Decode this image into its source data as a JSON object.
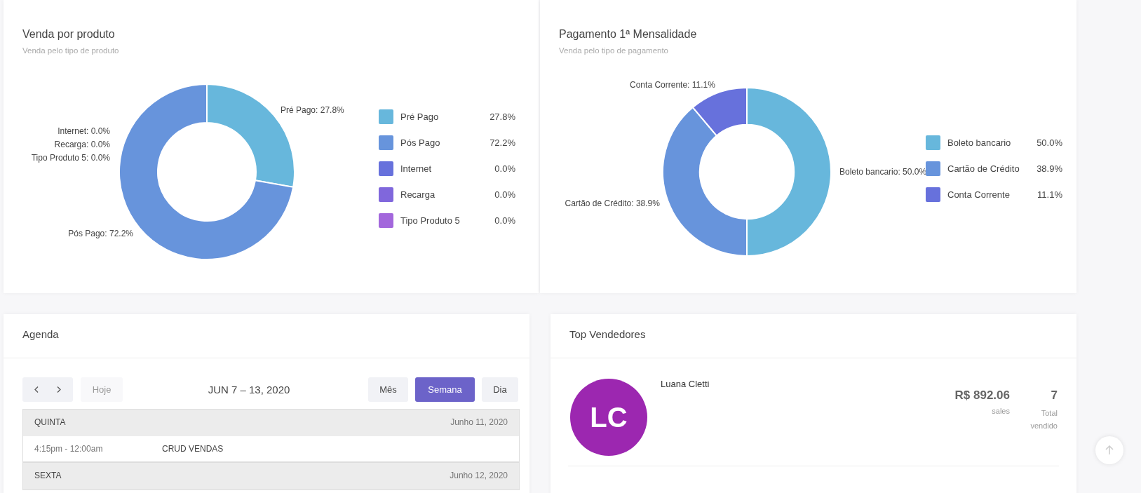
{
  "chart_data": [
    {
      "type": "donut",
      "title": "Venda por produto",
      "subtitle": "Venda pelo tipo de produto",
      "categories": [
        "Pré Pago",
        "Pós Pago",
        "Internet",
        "Recarga",
        "Tipo Produto 5"
      ],
      "values": [
        27.8,
        72.2,
        0,
        0,
        0
      ],
      "value_labels": [
        "27.8%",
        "72.2%",
        "0.0%",
        "0.0%",
        "0.0%"
      ],
      "colors": [
        "#67b7dc",
        "#6794dc",
        "#6771dc",
        "#8067dc",
        "#a367dc"
      ],
      "legend": "right",
      "annotations": [
        "Pré Pago: 27.8%",
        "Pós Pago: 72.2%",
        "Internet: 0.0%",
        "Recarga: 0.0%",
        "Tipo Produto 5: 0.0%"
      ]
    },
    {
      "type": "donut",
      "title": "Pagamento 1ª Mensalidade",
      "subtitle": "Venda pelo tipo de pagamento",
      "categories": [
        "Boleto bancario",
        "Cartão de Crédito",
        "Conta Corrente"
      ],
      "values": [
        50.0,
        38.9,
        11.1
      ],
      "value_labels": [
        "50.0%",
        "38.9%",
        "11.1%"
      ],
      "colors": [
        "#67b7dc",
        "#6794dc",
        "#6771dc"
      ],
      "legend": "right",
      "annotations": [
        "Boleto bancario: 50.0%",
        "Cartão de Crédito: 38.9%",
        "Conta Corrente: 11.1%"
      ]
    },
    {
      "type": "other",
      "title": "Agenda",
      "annotations": [
        "Hoje",
        "JUN 7 – 13, 2020",
        "Mês",
        "Semana",
        "Dia",
        "QUINTA",
        "Junho 11, 2020",
        "4:15pm - 12:00am",
        "CRUD VENDAS",
        "SEXTA",
        "Junho 12, 2020"
      ]
    },
    {
      "type": "other",
      "title": "Top Vendedores",
      "annotations": [
        "LC",
        "Luana Cletti",
        "R$ 892.06",
        "sales",
        "7",
        "Total vendido"
      ]
    }
  ]
}
